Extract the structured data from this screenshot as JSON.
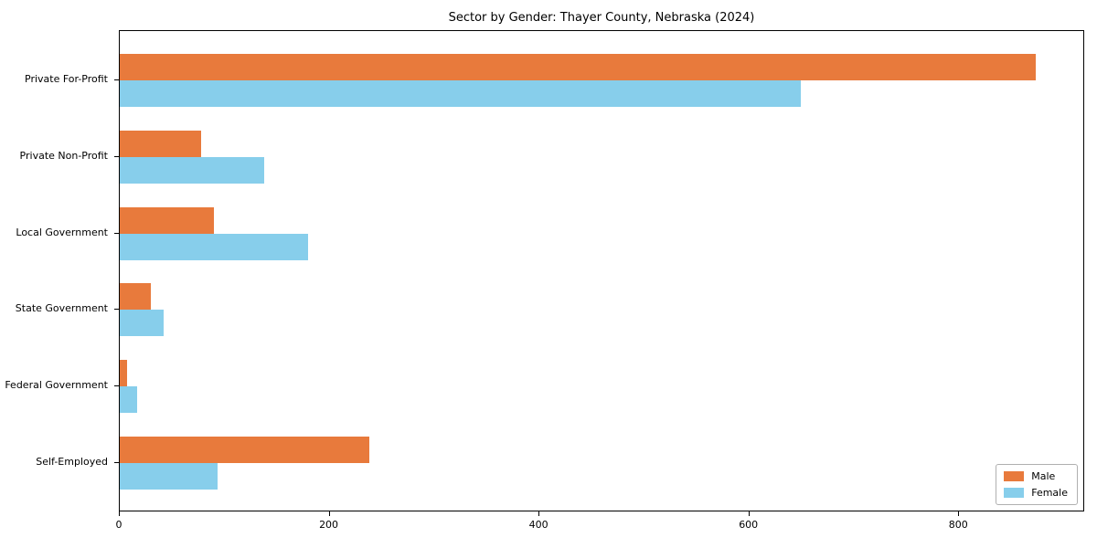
{
  "chart_data": {
    "type": "bar",
    "orientation": "horizontal",
    "title": "Sector by Gender: Thayer County, Nebraska (2024)",
    "categories": [
      "Private For-Profit",
      "Private Non-Profit",
      "Local Government",
      "State Government",
      "Federal Government",
      "Self-Employed"
    ],
    "series": [
      {
        "name": "Male",
        "color": "#e87a3c",
        "values": [
          875,
          78,
          90,
          30,
          7,
          238
        ]
      },
      {
        "name": "Female",
        "color": "#87ceeb",
        "values": [
          650,
          138,
          180,
          42,
          17,
          93
        ]
      }
    ],
    "xlabel": "",
    "ylabel": "",
    "xlim": [
      0,
      920
    ],
    "x_ticks": [
      "0",
      "200",
      "400",
      "600",
      "800"
    ],
    "x_tick_values": [
      0,
      200,
      400,
      600,
      800
    ],
    "grid": false,
    "legend": {
      "position": "lower right",
      "entries": [
        "Male",
        "Female"
      ]
    }
  }
}
